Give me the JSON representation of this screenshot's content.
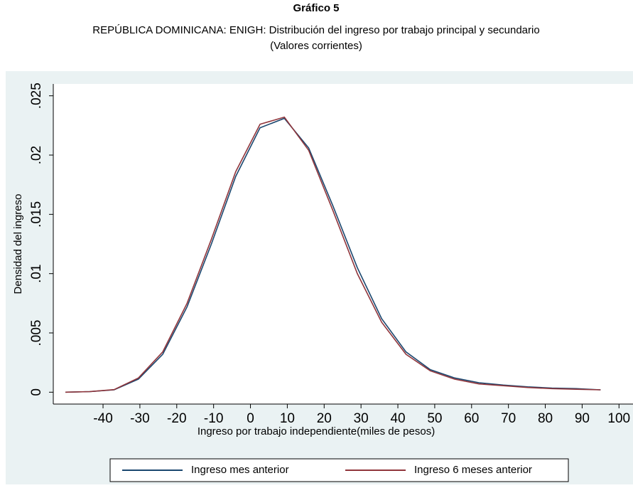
{
  "chart_data": {
    "type": "line",
    "title": "Gráfico 5",
    "subtitle": [
      "REPÚBLICA DOMINICANA: ENIGH: Distribución del ingreso por trabajo principal y secundario",
      "(Valores corrientes)"
    ],
    "x_label": "Ingreso por trabajo independiente(miles de pesos)",
    "y_label": "Densidad del ingreso",
    "x": [
      -50.2,
      -43.6,
      -37,
      -30.4,
      -23.8,
      -17.2,
      -10.6,
      -4,
      2.6,
      9.2,
      15.8,
      22.4,
      29,
      35.6,
      42.2,
      48.8,
      55.4,
      62,
      68.6,
      75.2,
      81.8,
      88.4,
      95
    ],
    "series": [
      {
        "name": "Ingreso mes anterior",
        "color": "#1a476f",
        "values": [
          0,
          5e-05,
          0.0002,
          0.0011,
          0.0032,
          0.0072,
          0.0125,
          0.0182,
          0.0223,
          0.0231,
          0.0206,
          0.0157,
          0.0105,
          0.0062,
          0.0034,
          0.0019,
          0.0012,
          0.0008,
          0.0006,
          0.00045,
          0.00035,
          0.0003,
          0.0002
        ]
      },
      {
        "name": "Ingreso 6 meses anterior",
        "color": "#90353b",
        "values": [
          0,
          5e-05,
          0.00022,
          0.0012,
          0.0034,
          0.0075,
          0.0129,
          0.0186,
          0.0226,
          0.0232,
          0.0204,
          0.0153,
          0.01,
          0.0059,
          0.0032,
          0.0018,
          0.0011,
          0.0007,
          0.00055,
          0.0004,
          0.0003,
          0.00025,
          0.0002
        ]
      }
    ],
    "xlim": [
      -53.5,
      103.8
    ],
    "xticks": [
      -40,
      -30,
      -20,
      -10,
      0,
      10,
      20,
      30,
      40,
      50,
      60,
      70,
      80,
      90,
      100
    ],
    "ylim": [
      -0.001,
      0.026
    ],
    "yticks": [
      0,
      {
        "value": 0.005,
        "label": ".005"
      },
      {
        "value": 0.01,
        "label": ".01"
      },
      {
        "value": 0.015,
        "label": ".015"
      },
      {
        "value": 0.02,
        "label": ".02"
      },
      {
        "value": 0.025,
        "label": ".025"
      }
    ],
    "grid": false,
    "legend": "bottom"
  }
}
